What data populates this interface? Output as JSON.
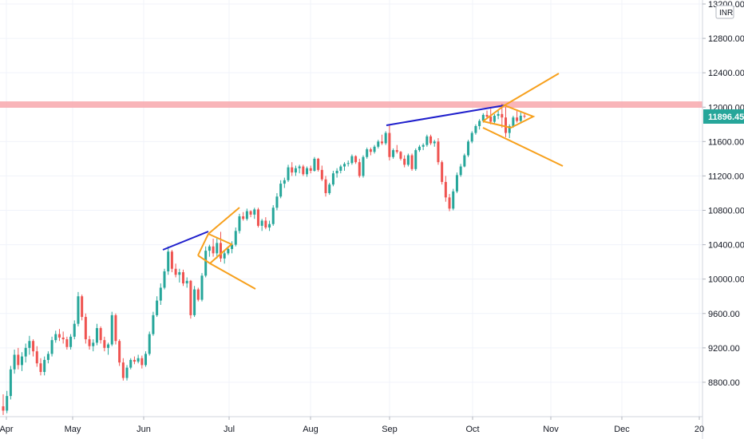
{
  "chart_data": {
    "type": "candlestick",
    "currency": "INR",
    "current_price": "11896.45",
    "ylim": [
      8400,
      13200
    ],
    "y_ticks": [
      "13200.00",
      "12800.00",
      "12400.00",
      "12000.00",
      "11600.00",
      "11200.00",
      "10800.00",
      "10400.00",
      "10000.00",
      "9600.00",
      "9200.00",
      "8800.00"
    ],
    "x_ticks": [
      "Apr",
      "May",
      "Jun",
      "Jul",
      "Aug",
      "Sep",
      "Oct",
      "Nov",
      "Dec",
      "20"
    ],
    "resistance_level": 12020,
    "candles": [
      [
        8520,
        8660,
        8420,
        8470
      ],
      [
        8470,
        8700,
        8440,
        8640
      ],
      [
        8640,
        8990,
        8600,
        8950
      ],
      [
        8950,
        9180,
        8900,
        9120
      ],
      [
        9120,
        9200,
        8950,
        9000
      ],
      [
        9000,
        9150,
        8930,
        9100
      ],
      [
        9100,
        9250,
        9030,
        9200
      ],
      [
        9200,
        9340,
        9120,
        9280
      ],
      [
        9280,
        9300,
        9100,
        9160
      ],
      [
        9160,
        9220,
        8980,
        9020
      ],
      [
        9020,
        9080,
        8880,
        8920
      ],
      [
        8920,
        9100,
        8880,
        9060
      ],
      [
        9060,
        9160,
        9020,
        9130
      ],
      [
        9130,
        9330,
        9100,
        9290
      ],
      [
        9290,
        9400,
        9260,
        9360
      ],
      [
        9360,
        9420,
        9280,
        9320
      ],
      [
        9320,
        9390,
        9250,
        9300
      ],
      [
        9300,
        9330,
        9180,
        9210
      ],
      [
        9210,
        9360,
        9180,
        9330
      ],
      [
        9330,
        9520,
        9300,
        9480
      ],
      [
        9480,
        9850,
        9450,
        9800
      ],
      [
        9800,
        9820,
        9520,
        9560
      ],
      [
        9560,
        9600,
        9250,
        9300
      ],
      [
        9300,
        9340,
        9180,
        9220
      ],
      [
        9220,
        9300,
        9160,
        9260
      ],
      [
        9260,
        9480,
        9230,
        9430
      ],
      [
        9430,
        9450,
        9250,
        9290
      ],
      [
        9290,
        9330,
        9160,
        9200
      ],
      [
        9200,
        9260,
        9120,
        9240
      ],
      [
        9240,
        9620,
        9220,
        9580
      ],
      [
        9580,
        9600,
        9240,
        9280
      ],
      [
        9280,
        9300,
        8990,
        9030
      ],
      [
        9030,
        9080,
        8820,
        8850
      ],
      [
        8850,
        9000,
        8820,
        8970
      ],
      [
        8970,
        9080,
        8950,
        9060
      ],
      [
        9060,
        9100,
        9010,
        9040
      ],
      [
        9040,
        9120,
        9020,
        9080
      ],
      [
        9080,
        9110,
        8960,
        9000
      ],
      [
        9000,
        9160,
        8980,
        9130
      ],
      [
        9130,
        9390,
        9110,
        9360
      ],
      [
        9360,
        9620,
        9340,
        9580
      ],
      [
        9580,
        9800,
        9560,
        9750
      ],
      [
        9750,
        9950,
        9700,
        9900
      ],
      [
        9900,
        10120,
        9880,
        10090
      ],
      [
        10090,
        10380,
        10050,
        10320
      ],
      [
        10320,
        10340,
        10080,
        10120
      ],
      [
        10120,
        10180,
        10020,
        10050
      ],
      [
        10050,
        10120,
        9960,
        10080
      ],
      [
        10080,
        10110,
        9920,
        9950
      ],
      [
        9950,
        10020,
        9900,
        9980
      ],
      [
        9980,
        9990,
        9540,
        9580
      ],
      [
        9580,
        9920,
        9560,
        9880
      ],
      [
        9880,
        9900,
        9740,
        9760
      ],
      [
        9760,
        10070,
        9740,
        10040
      ],
      [
        10040,
        10380,
        10020,
        10330
      ],
      [
        10330,
        10400,
        10260,
        10380
      ],
      [
        10380,
        10470,
        10260,
        10300
      ],
      [
        10300,
        10480,
        10240,
        10420
      ],
      [
        10420,
        10550,
        10200,
        10240
      ],
      [
        10240,
        10330,
        10180,
        10300
      ],
      [
        10300,
        10380,
        10280,
        10350
      ],
      [
        10350,
        10440,
        10300,
        10400
      ],
      [
        10400,
        10600,
        10380,
        10560
      ],
      [
        10560,
        10760,
        10530,
        10730
      ],
      [
        10730,
        10780,
        10680,
        10700
      ],
      [
        10700,
        10820,
        10680,
        10790
      ],
      [
        10790,
        10800,
        10720,
        10750
      ],
      [
        10750,
        10830,
        10700,
        10810
      ],
      [
        10810,
        10830,
        10600,
        10620
      ],
      [
        10620,
        10700,
        10560,
        10680
      ],
      [
        10680,
        10720,
        10580,
        10600
      ],
      [
        10600,
        10680,
        10560,
        10640
      ],
      [
        10640,
        10860,
        10620,
        10830
      ],
      [
        10830,
        11000,
        10800,
        10960
      ],
      [
        10960,
        11150,
        10940,
        11110
      ],
      [
        11110,
        11180,
        11060,
        11150
      ],
      [
        11150,
        11330,
        11130,
        11300
      ],
      [
        11300,
        11360,
        11200,
        11240
      ],
      [
        11240,
        11320,
        11200,
        11290
      ],
      [
        11290,
        11330,
        11230,
        11310
      ],
      [
        11310,
        11330,
        11200,
        11220
      ],
      [
        11220,
        11310,
        11190,
        11290
      ],
      [
        11290,
        11320,
        11230,
        11260
      ],
      [
        11260,
        11420,
        11250,
        11400
      ],
      [
        11400,
        11410,
        11250,
        11270
      ],
      [
        11270,
        11320,
        11140,
        11160
      ],
      [
        11160,
        11200,
        10960,
        11000
      ],
      [
        11000,
        11120,
        10980,
        11100
      ],
      [
        11100,
        11260,
        11080,
        11230
      ],
      [
        11230,
        11290,
        11180,
        11260
      ],
      [
        11260,
        11330,
        11230,
        11310
      ],
      [
        11310,
        11360,
        11260,
        11340
      ],
      [
        11340,
        11380,
        11310,
        11350
      ],
      [
        11350,
        11450,
        11330,
        11430
      ],
      [
        11430,
        11440,
        11340,
        11360
      ],
      [
        11360,
        11400,
        11180,
        11200
      ],
      [
        11200,
        11440,
        11180,
        11420
      ],
      [
        11420,
        11530,
        11400,
        11510
      ],
      [
        11510,
        11530,
        11440,
        11480
      ],
      [
        11480,
        11560,
        11460,
        11540
      ],
      [
        11540,
        11620,
        11520,
        11600
      ],
      [
        11600,
        11680,
        11560,
        11580
      ],
      [
        11580,
        11720,
        11560,
        11700
      ],
      [
        11700,
        11800,
        11380,
        11420
      ],
      [
        11420,
        11520,
        11400,
        11500
      ],
      [
        11500,
        11560,
        11460,
        11480
      ],
      [
        11480,
        11490,
        11380,
        11400
      ],
      [
        11400,
        11440,
        11300,
        11330
      ],
      [
        11330,
        11460,
        11310,
        11440
      ],
      [
        11440,
        11460,
        11260,
        11280
      ],
      [
        11280,
        11520,
        11260,
        11500
      ],
      [
        11500,
        11560,
        11480,
        11540
      ],
      [
        11540,
        11580,
        11500,
        11560
      ],
      [
        11560,
        11680,
        11540,
        11660
      ],
      [
        11660,
        11680,
        11560,
        11580
      ],
      [
        11580,
        11620,
        11540,
        11600
      ],
      [
        11600,
        11640,
        11330,
        11360
      ],
      [
        11360,
        11380,
        11100,
        11130
      ],
      [
        11130,
        11200,
        10900,
        10950
      ],
      [
        10950,
        10990,
        10790,
        10820
      ],
      [
        10820,
        11050,
        10800,
        11020
      ],
      [
        11020,
        11240,
        11000,
        11210
      ],
      [
        11210,
        11340,
        11190,
        11310
      ],
      [
        11310,
        11460,
        11300,
        11440
      ],
      [
        11440,
        11620,
        11420,
        11600
      ],
      [
        11600,
        11720,
        11580,
        11700
      ],
      [
        11700,
        11800,
        11680,
        11780
      ],
      [
        11780,
        11860,
        11740,
        11840
      ],
      [
        11840,
        11930,
        11820,
        11910
      ],
      [
        11910,
        11960,
        11860,
        11890
      ],
      [
        11890,
        11980,
        11800,
        11830
      ],
      [
        11830,
        11920,
        11810,
        11900
      ],
      [
        11900,
        11960,
        11860,
        11920
      ],
      [
        11920,
        12040,
        11760,
        11880
      ],
      [
        11880,
        12000,
        11650,
        11700
      ],
      [
        11700,
        11800,
        11640,
        11780
      ],
      [
        11780,
        11900,
        11760,
        11880
      ],
      [
        11880,
        11960,
        11820,
        11840
      ],
      [
        11840,
        11940,
        11810,
        11900
      ],
      [
        11900,
        11930,
        11870,
        11896
      ]
    ]
  }
}
